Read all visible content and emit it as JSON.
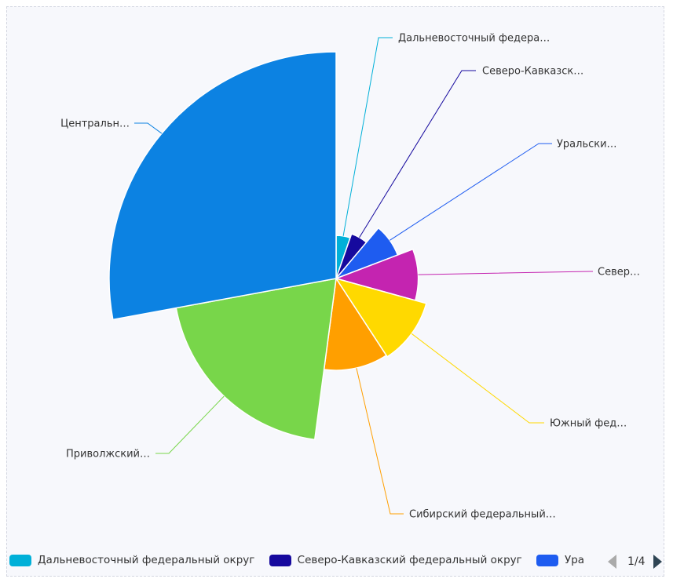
{
  "chart_data": {
    "type": "pie",
    "rose_type": "radius",
    "start_angle": "top, clockwise",
    "series": [
      {
        "name": "Дальневосточный федеральный округ",
        "label": "Дальневосточный федера…",
        "value": 5.3,
        "color": "#00b0d8"
      },
      {
        "name": "Северо-Кавказский федеральный округ",
        "label": "Северо-Кавказск…",
        "value": 5.8,
        "color": "#16099e"
      },
      {
        "name": "Уральский федеральный округ",
        "label": "Уральски…",
        "value": 8.1,
        "color": "#1e5cf0"
      },
      {
        "name": "Северо-Западный федеральный округ",
        "label": "Север…",
        "value": 10.1,
        "color": "#c424b0"
      },
      {
        "name": "Южный федеральный округ",
        "label": "Южный фед…",
        "value": 11.5,
        "color": "#ffd900"
      },
      {
        "name": "Сибирский федеральный округ",
        "label": "Сибирский федеральный…",
        "value": 11.3,
        "color": "#ff9f00"
      },
      {
        "name": "Приволжский федеральный округ",
        "label": "Приволжский…",
        "value": 20.0,
        "color": "#78d64a"
      },
      {
        "name": "Центральный федеральный округ",
        "label": "Центральн…",
        "value": 27.9,
        "color": "#0c82e2"
      }
    ],
    "legend": {
      "placement": "bottom",
      "visible_items": [
        "Дальневосточный федеральный округ",
        "Северо-Кавказский федеральный округ",
        "Ура"
      ],
      "page": "1/4"
    }
  }
}
